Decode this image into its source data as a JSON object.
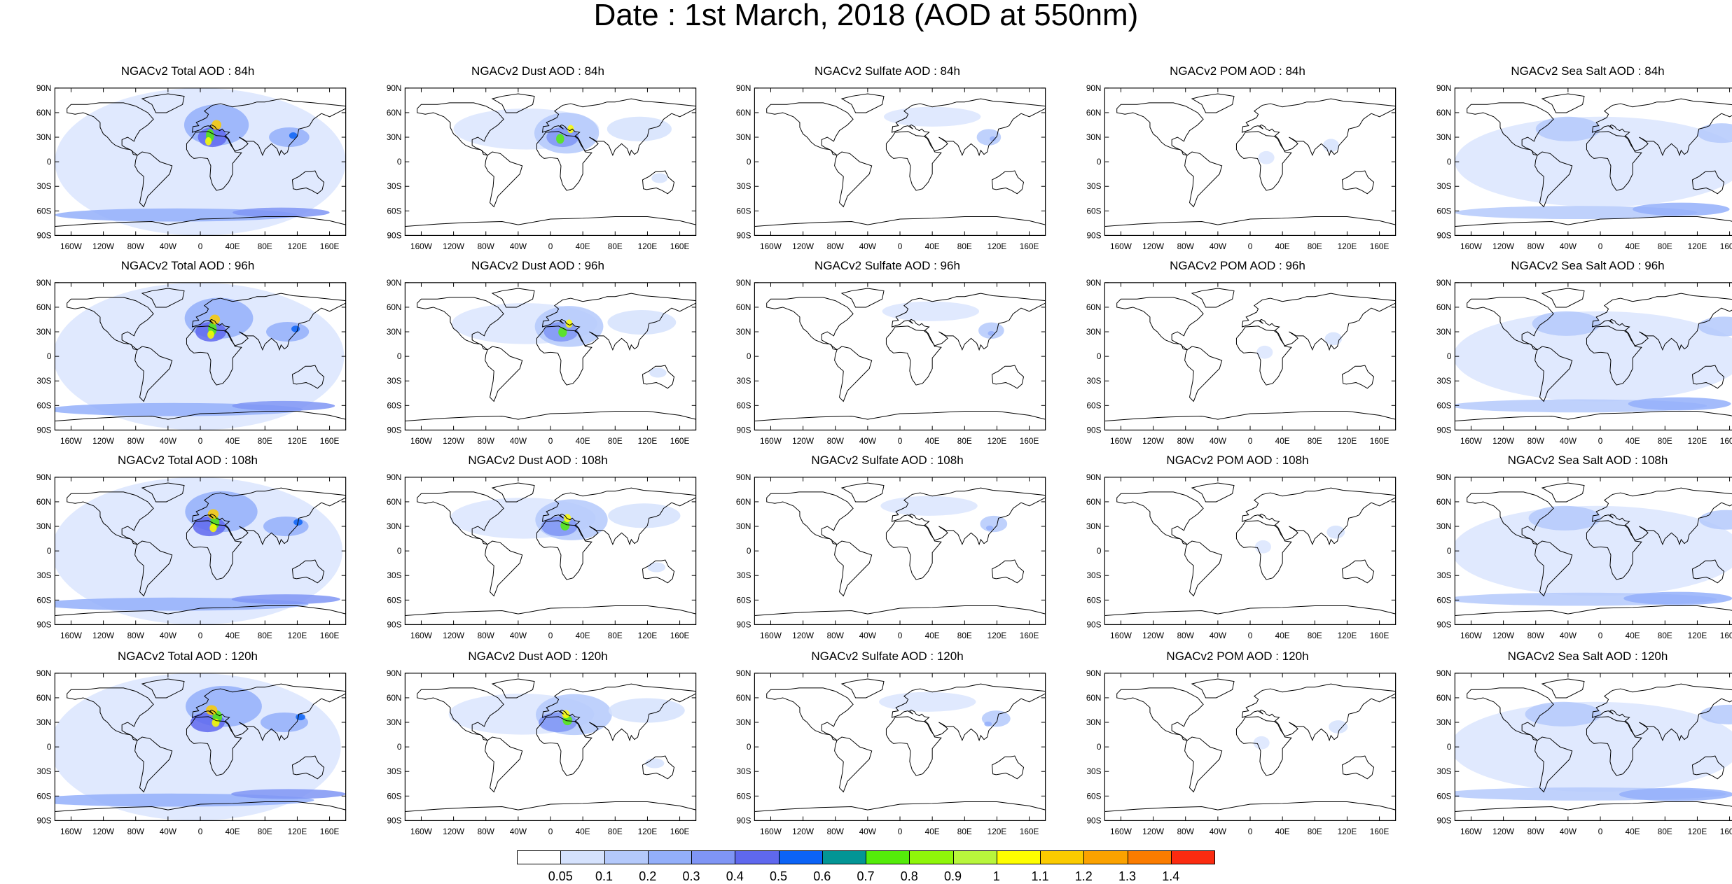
{
  "title": "Date : 1st March, 2018 (AOD at 550nm)",
  "panel_titles": [
    [
      "NGACv2 Total AOD : 84h",
      "NGACv2 Dust AOD : 84h",
      "NGACv2 Sulfate AOD : 84h",
      "NGACv2 POM AOD : 84h",
      "NGACv2 Sea Salt AOD : 84h"
    ],
    [
      "NGACv2 Total AOD : 96h",
      "NGACv2 Dust AOD : 96h",
      "NGACv2 Sulfate AOD : 96h",
      "NGACv2 POM AOD : 96h",
      "NGACv2 Sea Salt AOD : 96h"
    ],
    [
      "NGACv2 Total AOD : 108h",
      "NGACv2 Dust AOD : 108h",
      "NGACv2 Sulfate AOD : 108h",
      "NGACv2 POM AOD : 108h",
      "NGACv2 Sea Salt AOD : 108h"
    ],
    [
      "NGACv2 Total AOD : 120h",
      "NGACv2 Dust AOD : 120h",
      "NGACv2 Sulfate AOD : 120h",
      "NGACv2 POM AOD : 120h",
      "NGACv2 Sea Salt  AOD : 120h"
    ]
  ],
  "lat_labels": [
    "90N",
    "60N",
    "30N",
    "0",
    "30S",
    "60S",
    "90S"
  ],
  "lon_labels": [
    "160W",
    "120W",
    "80W",
    "40W",
    "0",
    "40E",
    "80E",
    "120E",
    "160E"
  ],
  "lon_values": [
    -160,
    -120,
    -80,
    -40,
    0,
    40,
    80,
    120,
    160
  ],
  "lat_values": [
    90,
    60,
    30,
    0,
    -30,
    -60,
    -90
  ],
  "colorbar": {
    "colors": [
      "#ffffff",
      "#d5e2fd",
      "#b4c9fb",
      "#93affa",
      "#7f95f5",
      "#5f68ee",
      "#0b63f6",
      "#039595",
      "#54ec0a",
      "#8ff60a",
      "#b8f63c",
      "#fefe00",
      "#fbcb00",
      "#fba200",
      "#fb7c00",
      "#fb2b10"
    ],
    "labels": [
      "0.05",
      "0.1",
      "0.2",
      "0.3",
      "0.4",
      "0.5",
      "0.6",
      "0.7",
      "0.8",
      "0.9",
      "1",
      "1.1",
      "1.2",
      "1.3",
      "1.4"
    ]
  }
}
